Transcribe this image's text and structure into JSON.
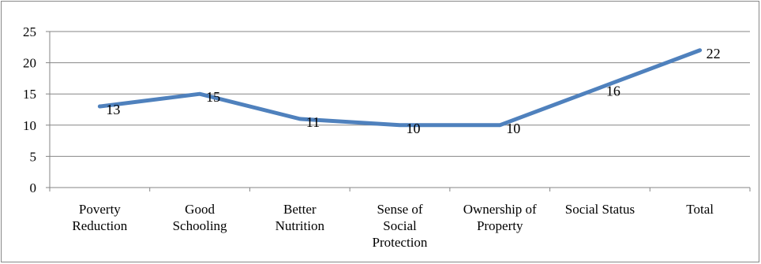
{
  "chart_data": {
    "type": "line",
    "title": "",
    "xlabel": "",
    "ylabel": "",
    "categories": [
      [
        "Poverty",
        "Reduction"
      ],
      [
        "Good",
        "Schooling"
      ],
      [
        "Better",
        "Nutrition"
      ],
      [
        "Sense of",
        "Social",
        "Protection"
      ],
      [
        "Ownership of",
        "Property"
      ],
      [
        "Social Status"
      ],
      [
        "Total"
      ]
    ],
    "series": [
      {
        "values": [
          13,
          15,
          11,
          10,
          10,
          16,
          22
        ],
        "color": "#4F81BD"
      }
    ],
    "ylim": [
      0,
      25
    ],
    "yticks": [
      "0",
      "5",
      "10",
      "15",
      "20",
      "25"
    ],
    "grid": true,
    "legend": "none",
    "data_labels": true
  }
}
